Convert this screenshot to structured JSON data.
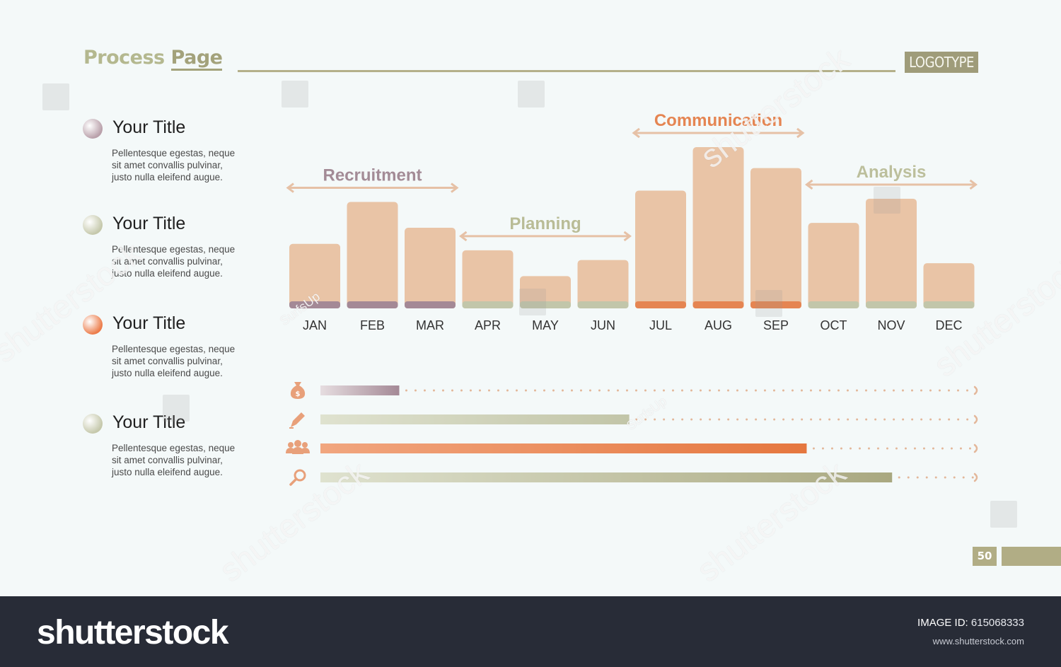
{
  "header": {
    "title_part1": "Process",
    "title_part2": "Page",
    "logo_text": "LOGOTYPE"
  },
  "legend": [
    {
      "title": "Your Title",
      "text": "Pellentesque egestas, neque sit amet convallis pulvinar, justo nulla eleifend augue.",
      "color": "#b9a0aa"
    },
    {
      "title": "Your Title",
      "text": "Pellentesque egestas, neque sit amet convallis pulvinar, justo nulla eleifend augue.",
      "color": "#c5c8ab"
    },
    {
      "title": "Your Title",
      "text": "Pellentesque egestas, neque sit amet convallis pulvinar, justo nulla eleifend augue.",
      "color": "#ec7c4a"
    },
    {
      "title": "Your Title",
      "text": "Pellentesque egestas, neque sit amet convallis pulvinar, justo nulla eleifend augue.",
      "color": "#c5c8ab"
    }
  ],
  "chart_data": {
    "type": "bar",
    "categories": [
      "JAN",
      "FEB",
      "MAR",
      "APR",
      "MAY",
      "JUN",
      "JUL",
      "AUG",
      "SEP",
      "OCT",
      "NOV",
      "DEC"
    ],
    "values": [
      40,
      66,
      50,
      36,
      20,
      30,
      73,
      100,
      87,
      53,
      68,
      28
    ],
    "bar_color": "#e9c4a6",
    "ylim": [
      0,
      100
    ],
    "grid": false,
    "base_colors": [
      "#a48996",
      "#a48996",
      "#a48996",
      "#c2c6aa",
      "#c2c6aa",
      "#c2c6aa",
      "#e58552",
      "#e58552",
      "#e58552",
      "#c2c6aa",
      "#c2c6aa",
      "#c2c6aa"
    ],
    "phases": [
      {
        "label": "Recruitment",
        "from": "JAN",
        "to": "MAR",
        "color": "#a38b96",
        "line_color": "#e6c1a6"
      },
      {
        "label": "Planning",
        "from": "APR",
        "to": "JUN",
        "color": "#b9bc96",
        "line_color": "#e6c1a6"
      },
      {
        "label": "Communication",
        "from": "JUL",
        "to": "SEP",
        "color": "#e58552",
        "line_color": "#e6c1a6"
      },
      {
        "label": "Analysis",
        "from": "OCT",
        "to": "DEC",
        "color": "#bcbf9c",
        "line_color": "#e6c1a6"
      }
    ],
    "progress": [
      {
        "icon": "money-bag-icon",
        "value": 12,
        "color_from": "#e6dde0",
        "color_to": "#a48996",
        "dot_color": "#e3b79a"
      },
      {
        "icon": "pencil-icon",
        "value": 47,
        "color_from": "#dfe2cf",
        "color_to": "#c2c5a8",
        "dot_color": "#e3b79a"
      },
      {
        "icon": "people-icon",
        "value": 74,
        "color_from": "#f1a67f",
        "color_to": "#e5773f",
        "dot_color": "#e3b79a"
      },
      {
        "icon": "search-icon",
        "value": 87,
        "color_from": "#dfe2cf",
        "color_to": "#a9a880",
        "dot_color": "#e3b79a"
      }
    ]
  },
  "page_number": "50",
  "footer": {
    "brand": "shutterstock",
    "id_label": "IMAGE ID:",
    "id_value": "615068333",
    "url": "www.shutterstock.com"
  },
  "watermark": {
    "text": "shutterstock",
    "small": "SurfsUp"
  }
}
